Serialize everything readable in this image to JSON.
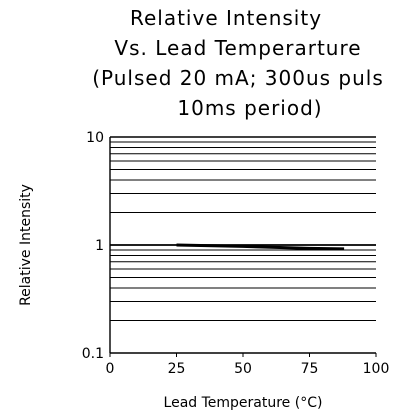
{
  "chart_data": {
    "type": "line",
    "title_lines": [
      "Relative Intensity",
      "Vs. Lead Temperarture",
      "(Pulsed 20 mA; 300us puls",
      "10ms period)"
    ],
    "xlabel": "Lead Temperature (°C)",
    "ylabel": "Relative Intensity",
    "x_scale": "linear",
    "y_scale": "log",
    "xlim": [
      0,
      100
    ],
    "ylim": [
      0.1,
      10
    ],
    "x_ticks": [
      0,
      25,
      50,
      75,
      100
    ],
    "x_tick_labels": [
      "0",
      "25",
      "50",
      "75",
      "100"
    ],
    "y_ticks": [
      0.1,
      1,
      10
    ],
    "y_tick_labels": [
      "0.1",
      "1",
      "10"
    ],
    "grid": "horizontal",
    "series": [
      {
        "x": [
          25,
          50,
          75,
          88
        ],
        "y": [
          1.0,
          0.97,
          0.93,
          0.92
        ]
      }
    ],
    "line_color": "#000000"
  }
}
